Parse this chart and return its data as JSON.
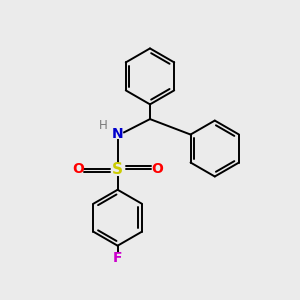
{
  "background_color": "#ebebeb",
  "bond_color": "#000000",
  "N_color": "#0000cc",
  "H_color": "#7a7a7a",
  "S_color": "#cccc00",
  "O_color": "#ff0000",
  "F_color": "#cc00cc",
  "figsize": [
    3.0,
    3.0
  ],
  "dpi": 100,
  "xlim": [
    0,
    10
  ],
  "ylim": [
    0,
    10
  ]
}
